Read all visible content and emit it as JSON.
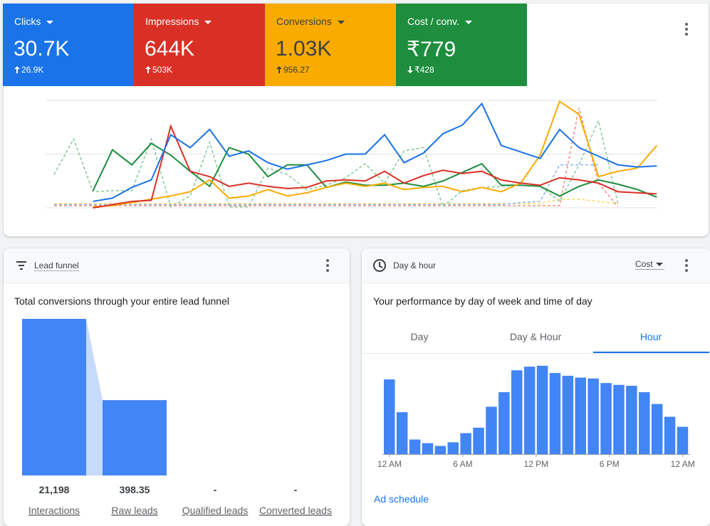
{
  "metrics": [
    {
      "label": "Clicks",
      "value": "30.7K",
      "change": "26.9K",
      "direction": "up",
      "color": "#1a73e8",
      "text_color": "#ffffff"
    },
    {
      "label": "Impressions",
      "value": "644K",
      "change": "503K",
      "direction": "up",
      "color": "#d93025",
      "text_color": "#ffffff"
    },
    {
      "label": "Conversions",
      "value": "1.03K",
      "change": "956.27",
      "direction": "up",
      "color": "#f9ab00",
      "text_color": "#3c4043"
    },
    {
      "label": "Cost / conv.",
      "value": "₹779",
      "change": "₹428",
      "direction": "down",
      "color": "#1e8e3e",
      "text_color": "#ffffff"
    }
  ],
  "overview_chart": {
    "type": "line",
    "categories": [
      null,
      null,
      null,
      null,
      null,
      null,
      null,
      null,
      null,
      null,
      null,
      null,
      null,
      null,
      null,
      null,
      null,
      null,
      null,
      null,
      null,
      null,
      null,
      null,
      null,
      null,
      null,
      null,
      null,
      null,
      null,
      null
    ],
    "ylim": [
      0,
      100
    ],
    "yticks": [
      0,
      50,
      100
    ],
    "grid": true,
    "series": [
      {
        "color": "#1a73e8",
        "dashed": false,
        "values": [
          null,
          null,
          6,
          9,
          19,
          26,
          68,
          56,
          73,
          48,
          53,
          42,
          36,
          40,
          44,
          50,
          50,
          68,
          42,
          51,
          69,
          77,
          97,
          58,
          52,
          46,
          73,
          56,
          48,
          40,
          38,
          39
        ]
      },
      {
        "color": "#d93025",
        "dashed": false,
        "values": [
          null,
          null,
          0,
          3,
          6,
          7,
          76,
          34,
          29,
          20,
          23,
          20,
          18,
          19,
          25,
          26,
          25,
          34,
          23,
          30,
          35,
          32,
          34,
          26,
          23,
          21,
          28,
          26,
          23,
          15,
          14,
          13
        ]
      },
      {
        "color": "#f9ab00",
        "dashed": false,
        "values": [
          null,
          null,
          1,
          2,
          5,
          8,
          11,
          15,
          26,
          9,
          11,
          17,
          11,
          14,
          19,
          23,
          20,
          23,
          17,
          19,
          20,
          15,
          19,
          15,
          23,
          49,
          99,
          87,
          29,
          34,
          37,
          58
        ]
      },
      {
        "color": "#1e8e3e",
        "dashed": false,
        "values": [
          null,
          null,
          16,
          54,
          40,
          60,
          49,
          34,
          20,
          56,
          50,
          29,
          40,
          40,
          19,
          24,
          21,
          21,
          23,
          20,
          25,
          33,
          41,
          21,
          21,
          20,
          11,
          20,
          26,
          22,
          17,
          10
        ]
      },
      {
        "color": "#81c995",
        "dashed": true,
        "values": [
          31,
          64,
          15,
          16,
          16,
          64,
          1,
          11,
          61,
          1,
          1,
          37,
          31,
          17,
          21,
          28,
          41,
          23,
          53,
          56,
          1,
          16,
          19,
          20,
          21,
          20,
          6,
          40,
          81,
          4,
          null,
          null
        ]
      },
      {
        "color": "#f28b82",
        "dashed": true,
        "values": [
          2,
          2,
          2,
          2,
          2,
          2,
          2,
          2,
          2,
          2,
          2,
          2,
          2,
          2,
          2,
          2,
          2,
          2,
          2,
          2,
          2,
          2,
          2,
          2,
          2,
          2,
          2,
          93,
          23,
          1,
          null,
          null
        ]
      },
      {
        "color": "#8ab4f8",
        "dashed": true,
        "values": [
          3,
          3,
          3,
          3,
          3,
          3,
          3,
          3,
          3,
          3,
          3,
          3,
          3,
          3,
          3,
          3,
          3,
          3,
          3,
          3,
          3,
          3,
          3,
          3,
          5,
          6,
          40,
          40,
          40,
          null,
          null,
          null
        ]
      },
      {
        "color": "#fdd663",
        "dashed": true,
        "values": [
          4,
          4,
          4,
          4,
          4,
          4,
          4,
          4,
          4,
          4,
          4,
          4,
          4,
          4,
          4,
          4,
          4,
          4,
          4,
          4,
          4,
          4,
          4,
          4,
          4,
          4,
          8,
          8,
          6,
          4,
          null,
          null
        ]
      }
    ]
  },
  "lead_funnel": {
    "title": "Lead funnel",
    "subtitle": "Total conversions through your entire lead funnel",
    "chart": {
      "type": "bar",
      "scale": "log",
      "ylim": [
        10,
        30000
      ],
      "color": "#4285f4",
      "categories": [
        "Interactions",
        "Raw leads",
        "Qualified leads",
        "Converted leads"
      ],
      "values": [
        21198,
        398.35,
        null,
        null
      ],
      "value_labels": [
        "21,198",
        "398.35",
        "-",
        "-"
      ]
    }
  },
  "day_hour": {
    "title": "Day & hour",
    "metric": "Cost",
    "subtitle": "Your performance by day of week and time of day",
    "tabs": [
      "Day",
      "Day & Hour",
      "Hour"
    ],
    "active_tab": 2,
    "chart": {
      "type": "bar",
      "color": "#4285f4",
      "ylim": [
        0,
        100
      ],
      "values": [
        82,
        46,
        16,
        12,
        9,
        13,
        23,
        29,
        52,
        68,
        92,
        96,
        97,
        89,
        86,
        84,
        83,
        78,
        76,
        75,
        68,
        55,
        41,
        30
      ],
      "xticks": [
        {
          "value": 0,
          "label": "12 AM"
        },
        {
          "value": 6,
          "label": "6 AM"
        },
        {
          "value": 12,
          "label": "12 PM"
        },
        {
          "value": 18,
          "label": "6 PM"
        },
        {
          "value": 24,
          "label": "12 AM"
        }
      ]
    },
    "link": "Ad schedule"
  }
}
